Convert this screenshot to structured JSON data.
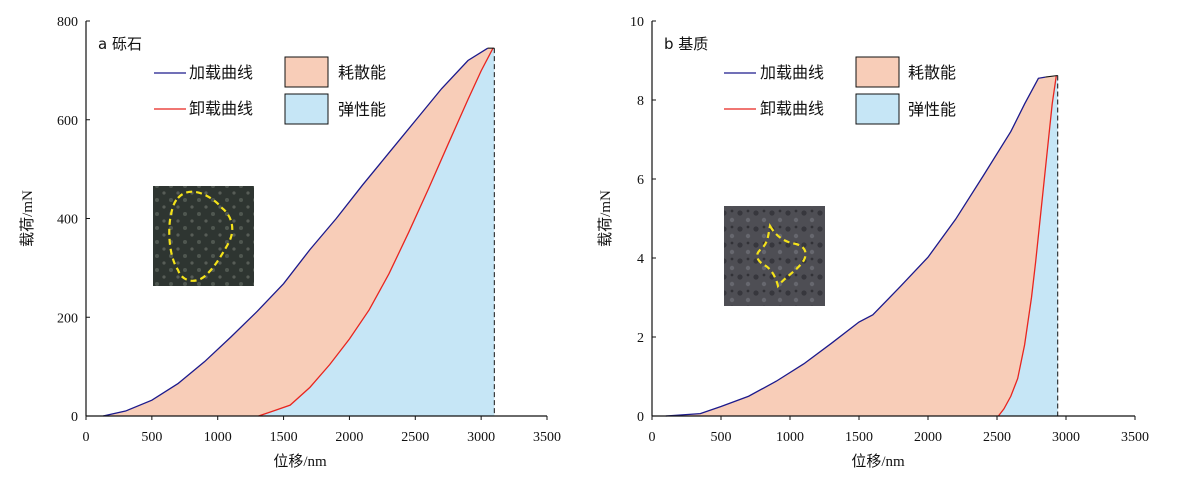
{
  "chart_data": [
    {
      "type": "area",
      "panel_label": "a 砾石",
      "xlabel": "位移/nm",
      "ylabel": "载荷/mN",
      "xlim": [
        0,
        3500
      ],
      "ylim": [
        0,
        800
      ],
      "xticks": [
        0,
        500,
        1000,
        1500,
        2000,
        2500,
        3000,
        3500
      ],
      "xtick_labels": [
        "0",
        "500",
        "1000",
        "1500",
        "2000",
        "2500",
        "3000",
        "3500"
      ],
      "yticks": [
        0,
        200,
        400,
        600,
        800
      ],
      "ytick_labels": [
        "0",
        "200",
        "400",
        "600",
        "800"
      ],
      "max_displacement": 3100,
      "max_load": 748,
      "series": [
        {
          "name": "加载曲线",
          "color": "#1c1a8c",
          "x": [
            130,
            300,
            500,
            700,
            900,
            1100,
            1300,
            1500,
            1700,
            1900,
            2100,
            2300,
            2500,
            2700,
            2900,
            3050
          ],
          "y": [
            0,
            10,
            32,
            66,
            110,
            160,
            212,
            268,
            337,
            400,
            468,
            533,
            598,
            663,
            720,
            745
          ]
        },
        {
          "name": "卸载曲线",
          "color": "#e8251f",
          "x": [
            1310,
            1400,
            1550,
            1700,
            1850,
            2000,
            2150,
            2300,
            2450,
            2600,
            2750,
            2900,
            3000,
            3090
          ],
          "y": [
            0,
            8,
            22,
            58,
            104,
            156,
            215,
            288,
            372,
            460,
            551,
            641,
            699,
            745
          ]
        }
      ],
      "regions": [
        {
          "name": "耗散能",
          "color": "#f8cdb8"
        },
        {
          "name": "弹性能",
          "color": "#c6e6f6"
        }
      ],
      "legend_position": "top-left",
      "inset": "photo"
    },
    {
      "type": "area",
      "panel_label": "b 基质",
      "xlabel": "位移/nm",
      "ylabel": "载荷/mN",
      "xlim": [
        0,
        3500
      ],
      "ylim": [
        0,
        10
      ],
      "xticks": [
        0,
        500,
        1000,
        1500,
        2000,
        2500,
        3000,
        3500
      ],
      "xtick_labels": [
        "0",
        "500",
        "1000",
        "1500",
        "2000",
        "2500",
        "3000",
        "3500"
      ],
      "yticks": [
        0,
        2,
        4,
        6,
        8,
        10
      ],
      "ytick_labels": [
        "0",
        "2",
        "4",
        "6",
        "8",
        "10"
      ],
      "max_displacement": 2940,
      "max_load": 8.65,
      "series": [
        {
          "name": "加载曲线",
          "color": "#1c1a8c",
          "x": [
            100,
            350,
            500,
            700,
            900,
            1100,
            1300,
            1500,
            1600,
            1800,
            2000,
            2200,
            2400,
            2600,
            2700,
            2800,
            2850
          ],
          "y": [
            0,
            0.06,
            0.24,
            0.5,
            0.88,
            1.32,
            1.84,
            2.38,
            2.56,
            3.28,
            4.02,
            4.98,
            6.08,
            7.2,
            7.9,
            8.55,
            8.58
          ]
        },
        {
          "name": "卸载曲线",
          "color": "#e8251f",
          "x": [
            2510,
            2550,
            2600,
            2650,
            2700,
            2750,
            2780,
            2810,
            2840,
            2870,
            2900,
            2930
          ],
          "y": [
            0,
            0.18,
            0.5,
            0.95,
            1.8,
            3.0,
            3.9,
            4.9,
            5.9,
            6.9,
            7.9,
            8.62
          ]
        }
      ],
      "regions": [
        {
          "name": "耗散能",
          "color": "#f8cdb8"
        },
        {
          "name": "弹性能",
          "color": "#c6e6f6"
        }
      ],
      "legend_position": "top-left",
      "inset": "photo"
    }
  ]
}
